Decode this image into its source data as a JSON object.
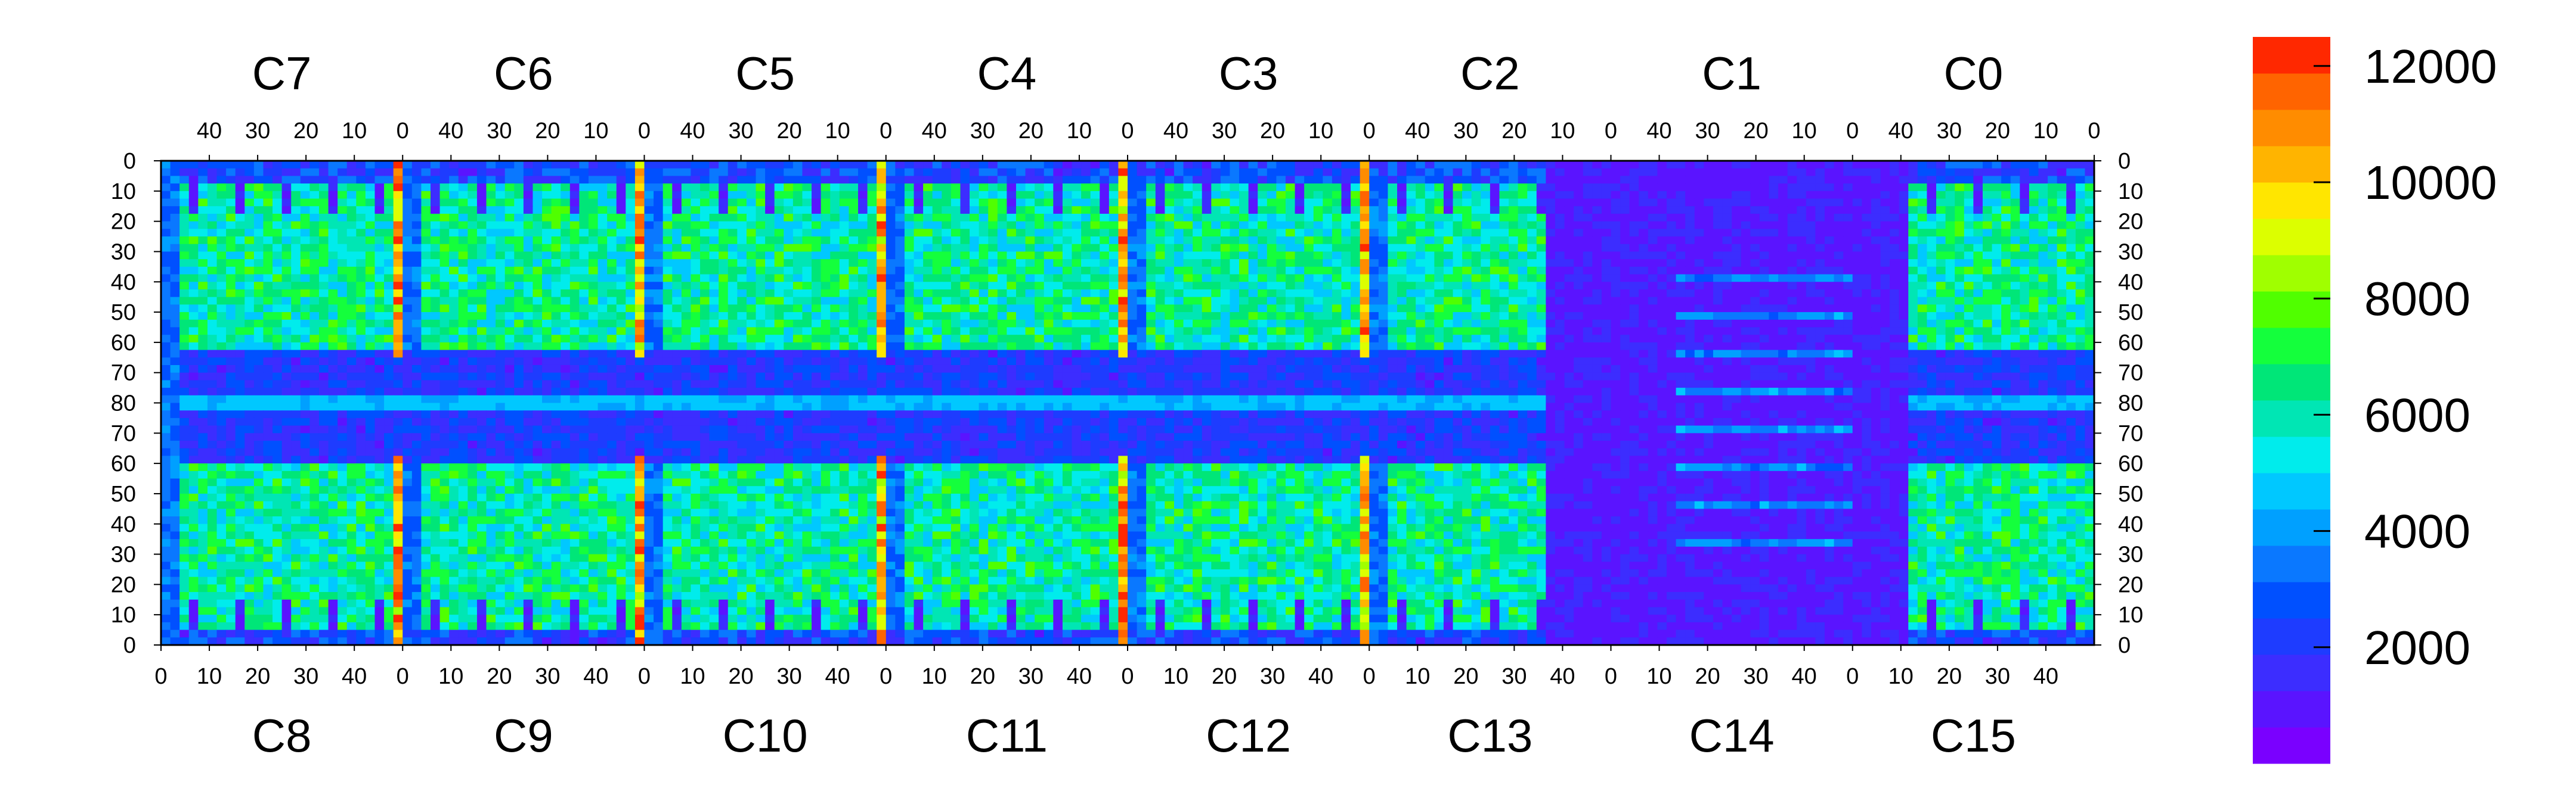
{
  "chart_data": {
    "type": "heatmap",
    "title": "",
    "top_chips": [
      "C7",
      "C6",
      "C5",
      "C4",
      "C3",
      "C2",
      "C1",
      "C0"
    ],
    "bottom_chips": [
      "C8",
      "C9",
      "C10",
      "C11",
      "C12",
      "C13",
      "C14",
      "C15"
    ],
    "top_x_ticks": [
      "40",
      "30",
      "20",
      "10",
      "0"
    ],
    "bottom_x_ticks": [
      "0",
      "10",
      "20",
      "30",
      "40"
    ],
    "y_ticks": [
      "0",
      "10",
      "20",
      "30",
      "40",
      "50",
      "60",
      "70",
      "80",
      "70",
      "60",
      "50",
      "40",
      "30",
      "20",
      "10",
      "0"
    ],
    "colorbar": {
      "min": 0,
      "max": 12500,
      "tick_values": [
        2000,
        4000,
        6000,
        8000,
        10000,
        12000
      ],
      "tick_labels": [
        "2000",
        "4000",
        "6000",
        "8000",
        "10000",
        "12000"
      ],
      "colors": [
        "#7a00ff",
        "#5a14ff",
        "#3c2dff",
        "#1e3cff",
        "#0050ff",
        "#0a78ff",
        "#00a0ff",
        "#00c8ff",
        "#00ecec",
        "#00e6b4",
        "#00e678",
        "#14ff3c",
        "#50ff00",
        "#a0ff00",
        "#dcff00",
        "#ffe600",
        "#ffb400",
        "#ff8c00",
        "#ff6400",
        "#ff2800"
      ]
    },
    "cols_per_chip": 52,
    "rows_per_half": 80,
    "map_description_levels": {
      "background_low": 1200,
      "typical_chip_body": 6000,
      "hot_columns": 11500,
      "dead_chip_region_C1_C2_C13_C14": 800
    }
  }
}
